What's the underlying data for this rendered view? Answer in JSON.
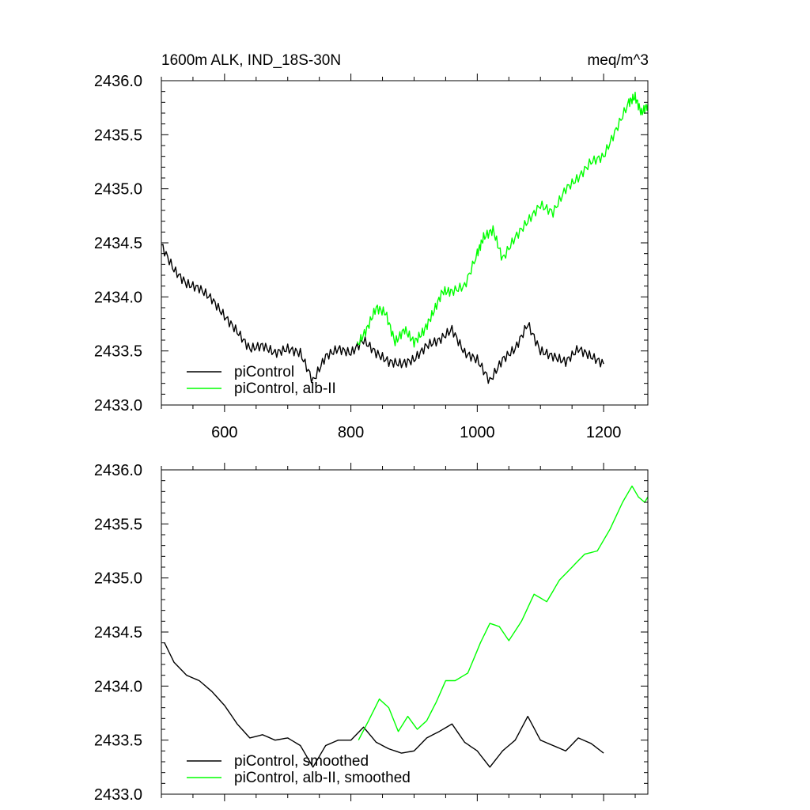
{
  "chart_data": [
    {
      "type": "line",
      "title_left": "1600m ALK, IND_18S-30N",
      "title_right": "meq/m^3",
      "xlim": [
        500,
        1270
      ],
      "ylim": [
        2433.0,
        2436.0
      ],
      "xticks": [
        600,
        800,
        1000,
        1200
      ],
      "xtick_labels": [
        "600",
        "800",
        "1000",
        "1200"
      ],
      "show_xtick_labels": true,
      "yticks": [
        2433.0,
        2433.5,
        2434.0,
        2434.5,
        2435.0,
        2435.5,
        2436.0
      ],
      "ytick_labels": [
        "2433.0",
        "2433.5",
        "2434.0",
        "2434.5",
        "2435.0",
        "2435.5",
        "2436.0"
      ],
      "legend_position": "bottom-left",
      "series": [
        {
          "name": "piControl",
          "color": "#000000",
          "x": [
            500,
            520,
            540,
            560,
            580,
            600,
            620,
            640,
            660,
            680,
            700,
            720,
            740,
            760,
            780,
            800,
            820,
            840,
            860,
            880,
            900,
            920,
            940,
            960,
            980,
            1000,
            1020,
            1040,
            1060,
            1080,
            1100,
            1120,
            1140,
            1160,
            1180,
            1200
          ],
          "y": [
            2434.48,
            2434.25,
            2434.12,
            2434.08,
            2433.98,
            2433.82,
            2433.68,
            2433.52,
            2433.55,
            2433.48,
            2433.52,
            2433.48,
            2433.22,
            2433.45,
            2433.52,
            2433.48,
            2433.6,
            2433.48,
            2433.4,
            2433.38,
            2433.42,
            2433.55,
            2433.6,
            2433.7,
            2433.48,
            2433.42,
            2433.22,
            2433.42,
            2433.52,
            2433.75,
            2433.5,
            2433.45,
            2433.4,
            2433.52,
            2433.45,
            2433.38
          ]
        },
        {
          "name": "piControl, alb-II",
          "color": "#00ff00",
          "x": [
            810,
            825,
            840,
            855,
            870,
            885,
            900,
            915,
            930,
            945,
            960,
            980,
            1000,
            1010,
            1025,
            1040,
            1060,
            1080,
            1100,
            1120,
            1140,
            1160,
            1180,
            1200,
            1220,
            1240,
            1250,
            1260,
            1270
          ],
          "y": [
            2433.55,
            2433.7,
            2433.9,
            2433.85,
            2433.58,
            2433.7,
            2433.58,
            2433.68,
            2433.85,
            2434.05,
            2434.05,
            2434.1,
            2434.4,
            2434.55,
            2434.62,
            2434.35,
            2434.55,
            2434.7,
            2434.85,
            2434.78,
            2435.0,
            2435.1,
            2435.25,
            2435.3,
            2435.55,
            2435.8,
            2435.85,
            2435.7,
            2435.78
          ]
        }
      ]
    },
    {
      "type": "line",
      "xlim": [
        500,
        1270
      ],
      "ylim": [
        2433.0,
        2436.0
      ],
      "xticks": [
        600,
        800,
        1000,
        1200
      ],
      "show_xtick_labels": false,
      "yticks": [
        2433.0,
        2433.5,
        2434.0,
        2434.5,
        2435.0,
        2435.5,
        2436.0
      ],
      "ytick_labels": [
        "2433.0",
        "2433.5",
        "2434.0",
        "2434.5",
        "2435.0",
        "2435.5",
        "2436.0"
      ],
      "legend_position": "bottom-left",
      "series": [
        {
          "name": "piControl, smoothed",
          "color": "#000000",
          "x": [
            505,
            520,
            540,
            560,
            580,
            600,
            620,
            640,
            660,
            680,
            700,
            720,
            740,
            760,
            780,
            800,
            820,
            840,
            860,
            880,
            900,
            920,
            940,
            960,
            980,
            1000,
            1020,
            1040,
            1060,
            1080,
            1100,
            1120,
            1140,
            1160,
            1180,
            1200
          ],
          "y": [
            2434.4,
            2434.22,
            2434.1,
            2434.05,
            2433.95,
            2433.82,
            2433.65,
            2433.52,
            2433.55,
            2433.5,
            2433.52,
            2433.45,
            2433.25,
            2433.45,
            2433.5,
            2433.5,
            2433.62,
            2433.48,
            2433.42,
            2433.38,
            2433.4,
            2433.52,
            2433.58,
            2433.65,
            2433.48,
            2433.4,
            2433.25,
            2433.4,
            2433.5,
            2433.72,
            2433.5,
            2433.45,
            2433.4,
            2433.52,
            2433.47,
            2433.38
          ]
        },
        {
          "name": "piControl, alb-II, smoothed",
          "color": "#00ff00",
          "x": [
            812,
            828,
            845,
            860,
            875,
            890,
            905,
            920,
            935,
            950,
            965,
            985,
            1005,
            1020,
            1035,
            1050,
            1070,
            1090,
            1110,
            1130,
            1150,
            1170,
            1190,
            1210,
            1230,
            1245,
            1255,
            1265,
            1270
          ],
          "y": [
            2433.5,
            2433.68,
            2433.88,
            2433.8,
            2433.58,
            2433.72,
            2433.6,
            2433.68,
            2433.85,
            2434.05,
            2434.05,
            2434.12,
            2434.4,
            2434.58,
            2434.55,
            2434.42,
            2434.6,
            2434.85,
            2434.78,
            2434.98,
            2435.1,
            2435.22,
            2435.25,
            2435.45,
            2435.7,
            2435.85,
            2435.75,
            2435.7,
            2435.75
          ]
        }
      ]
    }
  ]
}
